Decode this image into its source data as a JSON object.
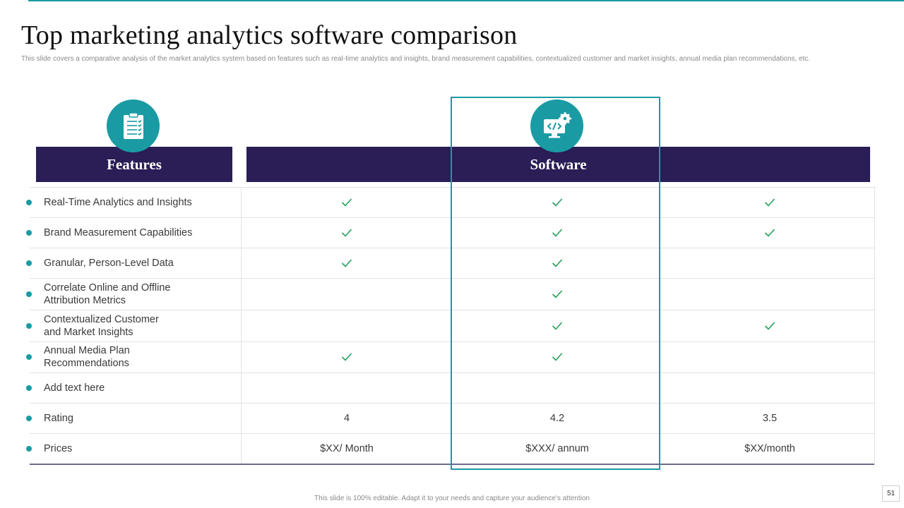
{
  "title": "Top marketing analytics software comparison",
  "subtitle": "This slide covers a comparative analysis of the market analytics system based on features such as real-time analytics and insights, brand measurement capabilities, contextualized customer and market insights, annual media plan recommendations, etc.",
  "headers": {
    "features": "Features",
    "software": "Software"
  },
  "icons": {
    "features": "clipboard-checklist-icon",
    "software": "monitor-code-gear-icon"
  },
  "rows": [
    {
      "feature": "Real-Time Analytics and Insights",
      "checks": [
        true,
        true,
        true
      ]
    },
    {
      "feature": "Brand Measurement Capabilities",
      "checks": [
        true,
        true,
        true
      ]
    },
    {
      "feature": "Granular, Person-Level Data",
      "checks": [
        true,
        true,
        false
      ]
    },
    {
      "feature": "Correlate Online and Offline\nAttribution Metrics",
      "checks": [
        false,
        true,
        false
      ]
    },
    {
      "feature": "Contextualized Customer\nand Market Insights",
      "checks": [
        false,
        true,
        true
      ]
    },
    {
      "feature": "Annual Media Plan\nRecommendations",
      "checks": [
        true,
        true,
        false
      ]
    },
    {
      "feature": "Add text here",
      "checks": [
        false,
        false,
        false
      ]
    },
    {
      "feature": "Rating",
      "values": [
        "4",
        "4.2",
        "3.5"
      ]
    },
    {
      "feature": "Prices",
      "values": [
        "$XX/ Month",
        "$XXX/ annum",
        "$XX/month"
      ]
    }
  ],
  "footer": "This slide is 100% editable. Adapt it to your needs and capture your audience's attention",
  "page_number": "51",
  "colors": {
    "accent": "#1a9ba3",
    "header": "#2b1d56",
    "check": "#22a05a"
  }
}
